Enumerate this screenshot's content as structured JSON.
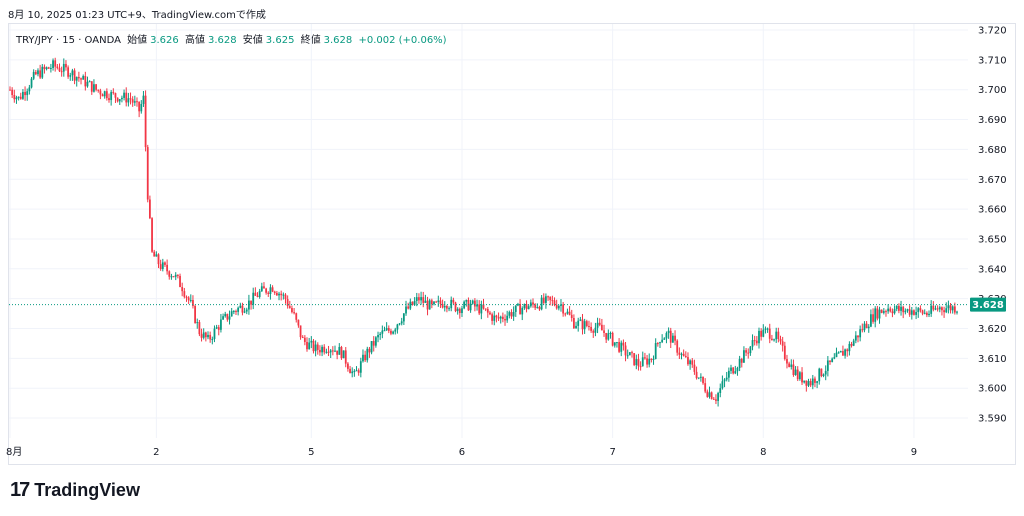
{
  "caption": "8月 10, 2025 01:23 UTC+9、TradingView.comで作成",
  "legend": {
    "symbol": "TRY/JPY · 15 · OANDA",
    "open_label": "始値",
    "open_value": "3.626",
    "high_label": "高値",
    "high_value": "3.628",
    "low_label": "安値",
    "low_value": "3.625",
    "close_label": "終値",
    "close_value": "3.628",
    "change": "+0.002 (+0.06%)"
  },
  "brand": {
    "logo_text": "17",
    "name": "TradingView"
  },
  "colors": {
    "up": "#089981",
    "down": "#f23645",
    "grid": "#f0f3fa",
    "price_line": "#089981",
    "axis_text": "#131722"
  },
  "chart_data": {
    "type": "candlestick",
    "y_ticks": [
      "3.720",
      "3.710",
      "3.700",
      "3.690",
      "3.680",
      "3.670",
      "3.660",
      "3.650",
      "3.640",
      "3.630",
      "3.620",
      "3.610",
      "3.600",
      "3.590"
    ],
    "ylim": [
      3.589,
      3.721
    ],
    "x_tick_labels": [
      "8月",
      "2",
      "5",
      "6",
      "7",
      "8",
      "9"
    ],
    "last_price": "3.628",
    "last_price_value": 3.628,
    "price_path": [
      [
        0,
        3.7
      ],
      [
        2,
        3.697
      ],
      [
        6,
        3.705
      ],
      [
        10,
        3.708
      ],
      [
        14,
        3.706
      ],
      [
        17,
        3.703
      ],
      [
        20,
        3.7
      ],
      [
        24,
        3.698
      ],
      [
        28,
        3.697
      ],
      [
        30,
        3.693
      ],
      [
        31,
        3.697
      ],
      [
        32,
        3.665
      ],
      [
        33,
        3.645
      ],
      [
        35,
        3.641
      ],
      [
        38,
        3.638
      ],
      [
        40,
        3.634
      ],
      [
        42,
        3.628
      ],
      [
        44,
        3.619
      ],
      [
        46,
        3.616
      ],
      [
        49,
        3.622
      ],
      [
        52,
        3.626
      ],
      [
        55,
        3.628
      ],
      [
        58,
        3.632
      ],
      [
        61,
        3.634
      ],
      [
        64,
        3.63
      ],
      [
        66,
        3.624
      ],
      [
        68,
        3.616
      ],
      [
        71,
        3.613
      ],
      [
        74,
        3.614
      ],
      [
        77,
        3.612
      ],
      [
        80,
        3.604
      ],
      [
        83,
        3.612
      ],
      [
        86,
        3.618
      ],
      [
        89,
        3.62
      ],
      [
        92,
        3.626
      ],
      [
        95,
        3.63
      ],
      [
        98,
        3.627
      ],
      [
        101,
        3.629
      ],
      [
        104,
        3.627
      ],
      [
        107,
        3.628
      ],
      [
        110,
        3.626
      ],
      [
        113,
        3.623
      ],
      [
        116,
        3.625
      ],
      [
        119,
        3.627
      ],
      [
        122,
        3.628
      ],
      [
        125,
        3.629
      ],
      [
        128,
        3.628
      ],
      [
        131,
        3.622
      ],
      [
        134,
        3.621
      ],
      [
        137,
        3.62
      ],
      [
        140,
        3.616
      ],
      [
        143,
        3.612
      ],
      [
        146,
        3.608
      ],
      [
        149,
        3.61
      ],
      [
        151,
        3.617
      ],
      [
        153,
        3.618
      ],
      [
        156,
        3.611
      ],
      [
        159,
        3.606
      ],
      [
        162,
        3.599
      ],
      [
        164,
        3.597
      ],
      [
        167,
        3.605
      ],
      [
        170,
        3.61
      ],
      [
        172,
        3.614
      ],
      [
        174,
        3.618
      ],
      [
        176,
        3.619
      ],
      [
        178,
        3.617
      ],
      [
        180,
        3.611
      ],
      [
        183,
        3.604
      ],
      [
        186,
        3.602
      ],
      [
        189,
        3.606
      ],
      [
        192,
        3.61
      ],
      [
        195,
        3.614
      ],
      [
        198,
        3.62
      ],
      [
        201,
        3.625
      ],
      [
        204,
        3.627
      ],
      [
        207,
        3.626
      ],
      [
        210,
        3.626
      ],
      [
        213,
        3.625
      ],
      [
        216,
        3.627
      ],
      [
        219,
        3.627
      ]
    ],
    "x_ticks_at": [
      0,
      34,
      70,
      105,
      140,
      175,
      210
    ],
    "x_max": 220
  }
}
